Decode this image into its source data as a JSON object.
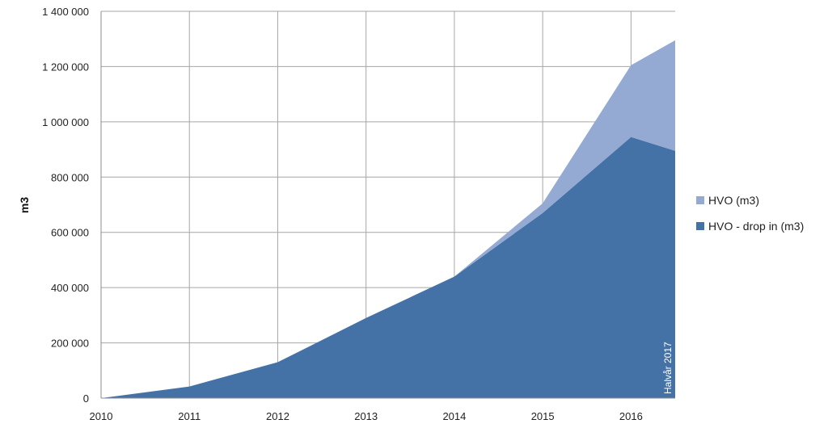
{
  "chart_data": {
    "type": "area",
    "stacked": true,
    "title": "",
    "xlabel": "",
    "ylabel": "m3",
    "x": [
      2010,
      2011,
      2012,
      2013,
      2014,
      2015,
      2016,
      2016.5
    ],
    "x_ticks": [
      "2010",
      "2011",
      "2012",
      "2013",
      "2014",
      "2015",
      "2016"
    ],
    "y_ticks": [
      "0",
      "200 000",
      "400 000",
      "600 000",
      "800 000",
      "1 000 000",
      "1 200 000",
      "1 400 000"
    ],
    "xlim": [
      2010,
      2016.5
    ],
    "ylim": [
      0,
      1400000
    ],
    "grid": true,
    "legend_position": "right",
    "series": [
      {
        "name": "HVO - drop in (m3)",
        "color": "#4472a6",
        "values": [
          0,
          42000,
          130000,
          290000,
          440000,
          670000,
          945000,
          895000
        ]
      },
      {
        "name": "HVO (m3)",
        "color": "#95aad3",
        "values": [
          0,
          0,
          0,
          0,
          0,
          35000,
          260000,
          400000
        ]
      }
    ],
    "legend_order": [
      "HVO (m3)",
      "HVO - drop in (m3)"
    ],
    "annotation": "Halvår 2017"
  }
}
